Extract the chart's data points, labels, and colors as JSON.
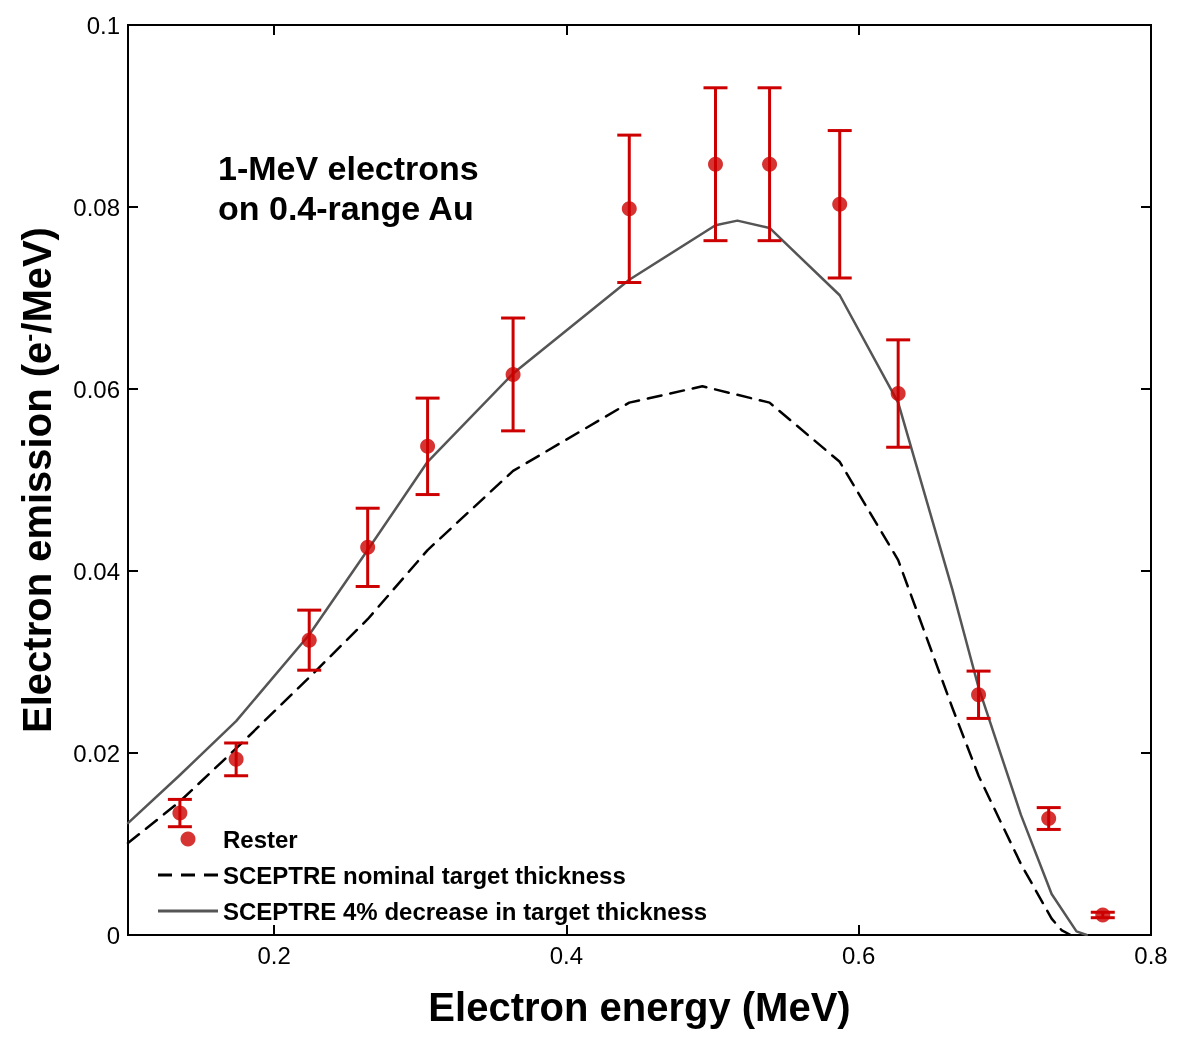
{
  "chart_data": {
    "type": "line",
    "xlabel": "Electron energy (MeV)",
    "ylabel": "Electron emission (e$^{-}$/MeV)",
    "annotations": [
      "1-MeV electrons\non 0.4-range Au"
    ],
    "xlim": [
      0.1,
      0.8
    ],
    "xticks": [
      0.2,
      0.4,
      0.6,
      0.8
    ],
    "ylim": [
      0,
      0.1
    ],
    "yticks": [
      0,
      0.02,
      0.04,
      0.06,
      0.08,
      0.1
    ],
    "grid": false,
    "legend": "bottom left",
    "series": [
      {
        "name": "Rester",
        "type": "scatter",
        "color": "#cc0000",
        "marker": "circle",
        "x": [
          0.1355,
          0.174,
          0.224,
          0.264,
          0.305,
          0.3635,
          0.443,
          0.502,
          0.539,
          0.587,
          0.627,
          0.682,
          0.73,
          0.767
        ],
        "values": [
          0.0134,
          0.0193,
          0.0324,
          0.0426,
          0.0537,
          0.0616,
          0.0798,
          0.0847,
          0.0847,
          0.0803,
          0.0595,
          0.0264,
          0.0128,
          0.0022
        ],
        "errors": [
          0.0015,
          0.0018,
          0.0033,
          0.0043,
          0.0053,
          0.0062,
          0.0081,
          0.0084,
          0.0084,
          0.0081,
          0.0059,
          0.0026,
          0.0012,
          0.0003
        ]
      },
      {
        "name": "SCEPTRE nominal target thickness",
        "type": "line",
        "color": "#000000",
        "line_style": "dashed",
        "marker": "none",
        "x": [
          0.1,
          0.135,
          0.174,
          0.224,
          0.264,
          0.305,
          0.3635,
          0.443,
          0.493,
          0.539,
          0.587,
          0.627,
          0.664,
          0.682,
          0.711,
          0.732,
          0.739,
          0.745
        ],
        "values": [
          0.0101,
          0.0146,
          0.0205,
          0.0283,
          0.0347,
          0.0423,
          0.051,
          0.0585,
          0.0603,
          0.0585,
          0.052,
          0.0412,
          0.025,
          0.0175,
          0.0078,
          0.0018,
          0.0005,
          0
        ]
      },
      {
        "name": "SCEPTRE 4% decrease in target thickness",
        "type": "line",
        "color": "#555555",
        "line_style": "solid",
        "marker": "none",
        "x": [
          0.1,
          0.135,
          0.174,
          0.224,
          0.264,
          0.305,
          0.3635,
          0.443,
          0.502,
          0.517,
          0.539,
          0.587,
          0.627,
          0.664,
          0.682,
          0.711,
          0.732,
          0.749,
          0.756
        ],
        "values": [
          0.0123,
          0.0175,
          0.0235,
          0.033,
          0.0423,
          0.052,
          0.0617,
          0.072,
          0.078,
          0.0785,
          0.0777,
          0.0703,
          0.0585,
          0.038,
          0.0272,
          0.0132,
          0.0045,
          0.0004,
          0
        ]
      }
    ]
  }
}
